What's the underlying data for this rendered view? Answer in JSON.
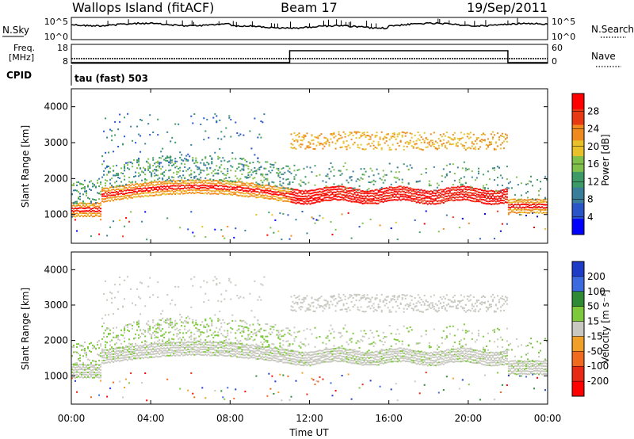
{
  "header": {
    "station": "Wallops Island (fitACF)",
    "beam": "Beam 17",
    "date": "19/Sep/2011"
  },
  "chart_data": [
    {
      "type": "line",
      "panel": "noise",
      "left_label": "N.Sky",
      "right_label": "N.Search",
      "left_ticks": [
        "10^5",
        "10^0"
      ],
      "right_ticks": [
        "10^5",
        "10^0"
      ],
      "log_scale": true
    },
    {
      "type": "line",
      "panel": "frequency",
      "left_label_top": "Freq.",
      "left_label_bottom": "[MHz]",
      "right_label": "Nave",
      "left_ticks": [
        18,
        8
      ],
      "right_ticks": [
        60,
        0
      ],
      "nave_steps": [
        {
          "start_hour": 0,
          "end_hour": 11.0,
          "value": 0
        },
        {
          "start_hour": 11.0,
          "end_hour": 22.0,
          "value": 45
        },
        {
          "start_hour": 22.0,
          "end_hour": 24.0,
          "value": 0
        }
      ],
      "freq_mhz": 10.5
    },
    {
      "type": "text",
      "panel": "cpid",
      "label": "CPID",
      "program": "tau (fast) 503"
    },
    {
      "type": "heatmap",
      "panel": "power",
      "ylabel": "Slant Range [km]",
      "yticks": [
        1000,
        2000,
        3000,
        4000
      ],
      "ylim": [
        200,
        4500
      ],
      "colorbar_label": "Power [dB]",
      "colorbar_ticks": [
        4,
        8,
        12,
        16,
        20,
        24,
        28
      ],
      "colorbar_range": [
        0,
        32
      ],
      "colors": [
        "#0000ff",
        "#2a55c8",
        "#3a7d9a",
        "#3c9a66",
        "#7fbf4a",
        "#e8c12a",
        "#f08a1e",
        "#e83a12",
        "#ff0000"
      ]
    },
    {
      "type": "heatmap",
      "panel": "velocity",
      "ylabel": "Slant Range [km]",
      "yticks": [
        1000,
        2000,
        3000,
        4000
      ],
      "ylim": [
        200,
        4500
      ],
      "colorbar_label": "Velocity [m s⁻¹]",
      "colorbar_ticks": [
        200,
        100,
        50,
        15,
        -15,
        -50,
        -100,
        -200
      ],
      "colors": [
        "#1e3cc8",
        "#3c6ae0",
        "#2e8a34",
        "#7ec83c",
        "#c8c8c0",
        "#f0a028",
        "#f06a1e",
        "#e82a14",
        "#ff0000"
      ],
      "xlabel": "Time UT",
      "xticks": [
        "00:00",
        "04:00",
        "08:00",
        "12:00",
        "16:00",
        "20:00",
        "00:00"
      ],
      "xlim_hours": [
        0,
        24
      ]
    }
  ]
}
